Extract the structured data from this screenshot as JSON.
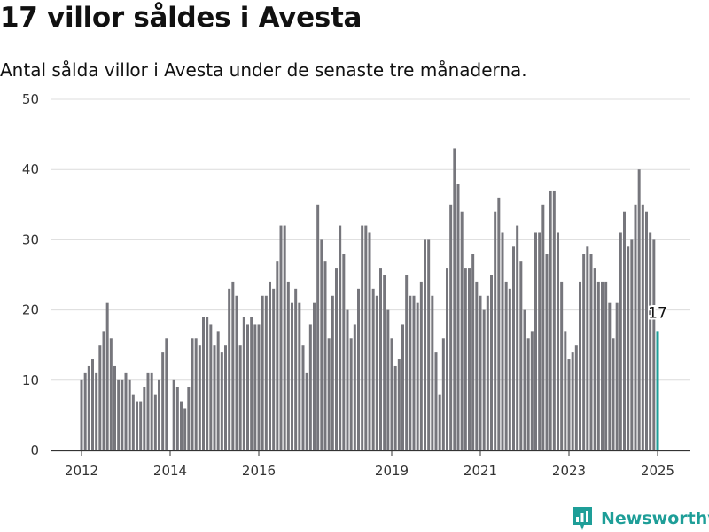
{
  "title": "17 villor såldes i Avesta",
  "subtitle": "Antal sålda villor i Avesta under de senaste tre månaderna.",
  "brand": {
    "name": "Newsworthy",
    "color": "#1e9e98",
    "logo_icon": "newsworthy-chart-logo-icon"
  },
  "chart_data": {
    "type": "bar",
    "title": "",
    "xlabel": "",
    "ylabel": "",
    "x_start": "2012-01",
    "x_end": "2025-01",
    "ylim": [
      0,
      50
    ],
    "yticks": [
      0,
      10,
      20,
      30,
      40,
      50
    ],
    "xticks": [
      {
        "label": "2012",
        "month": "2012-01"
      },
      {
        "label": "2014",
        "month": "2014-01"
      },
      {
        "label": "2016",
        "month": "2016-01"
      },
      {
        "label": "2019",
        "month": "2019-01"
      },
      {
        "label": "2021",
        "month": "2021-01"
      },
      {
        "label": "2023",
        "month": "2023-01"
      },
      {
        "label": "2025",
        "month": "2025-01"
      }
    ],
    "grid": true,
    "bar_color": "#76767c",
    "highlight_color": "#1e9e98",
    "highlight_label": "17",
    "values": [
      10,
      11,
      12,
      13,
      11,
      15,
      17,
      21,
      16,
      12,
      10,
      10,
      11,
      10,
      8,
      7,
      7,
      9,
      11,
      11,
      8,
      10,
      14,
      16,
      0,
      10,
      9,
      7,
      6,
      9,
      16,
      16,
      15,
      19,
      19,
      18,
      15,
      17,
      14,
      15,
      23,
      24,
      22,
      15,
      19,
      18,
      19,
      18,
      18,
      22,
      22,
      24,
      23,
      27,
      32,
      32,
      24,
      21,
      23,
      21,
      15,
      11,
      18,
      21,
      35,
      30,
      27,
      16,
      22,
      26,
      32,
      28,
      20,
      16,
      18,
      23,
      32,
      32,
      31,
      23,
      22,
      26,
      25,
      20,
      16,
      12,
      13,
      18,
      25,
      22,
      22,
      21,
      24,
      30,
      30,
      22,
      14,
      8,
      16,
      26,
      35,
      43,
      38,
      34,
      26,
      26,
      28,
      24,
      22,
      20,
      22,
      25,
      34,
      36,
      31,
      24,
      23,
      29,
      32,
      27,
      20,
      16,
      17,
      31,
      31,
      35,
      28,
      37,
      37,
      31,
      24,
      17,
      13,
      14,
      15,
      24,
      28,
      29,
      28,
      26,
      24,
      24,
      24,
      21,
      16,
      21,
      31,
      34,
      29,
      30,
      35,
      40,
      35,
      34,
      31,
      30,
      17
    ]
  }
}
